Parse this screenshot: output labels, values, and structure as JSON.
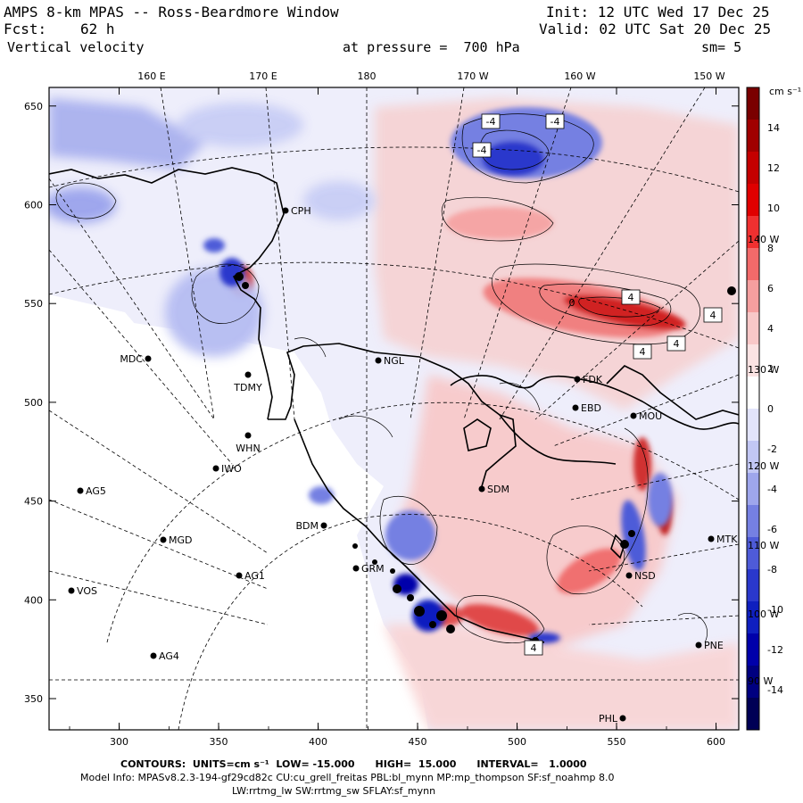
{
  "header": {
    "title": "AMPS 8-km MPAS -- Ross-Beardmore Window",
    "init": "Init: 12 UTC Wed 17 Dec 25",
    "fcst_label": "Fcst:",
    "fcst_value": "62 h",
    "valid": "Valid: 02 UTC Sat 20 Dec 25",
    "variable": "Vertical velocity",
    "pressure": "at pressure =  700 hPa",
    "smoothing": "sm= 5"
  },
  "axes": {
    "x_ticks": [
      "300",
      "350",
      "400",
      "450",
      "500",
      "550",
      "600"
    ],
    "y_ticks": [
      "350",
      "400",
      "450",
      "500",
      "550",
      "600",
      "650"
    ],
    "lon_labels": [
      "160 E",
      "170 E",
      "180",
      "170 W",
      "160 W",
      "150 W"
    ],
    "edge_lon_labels": [
      "140 W",
      "130 W",
      "120 W",
      "110 W",
      "100 W",
      "90 W"
    ]
  },
  "colorbar": {
    "units": "cm s⁻¹",
    "labels": [
      "14",
      "12",
      "10",
      "8",
      "6",
      "4",
      "2",
      "0",
      "-2",
      "-4",
      "-6",
      "-8",
      "-10",
      "-12",
      "-14"
    ],
    "colors": [
      "#7a0000",
      "#a00000",
      "#c40000",
      "#e00000",
      "#f03030",
      "#f26a6a",
      "#f59f9f",
      "#f8c8c8",
      "#fbe3e3",
      "#ffffff",
      "#e2e4fb",
      "#c2c7f4",
      "#9ea6ec",
      "#7580e2",
      "#4e5bd8",
      "#2a38cc",
      "#0f1fbf",
      "#0000aa",
      "#000080",
      "#000055"
    ]
  },
  "stations": [
    {
      "id": "CPH",
      "label": "CPH"
    },
    {
      "id": "MDC",
      "label": "MDC"
    },
    {
      "id": "TDMY",
      "label": "TDMY"
    },
    {
      "id": "NGL",
      "label": "NGL"
    },
    {
      "id": "WHN",
      "label": "WHN"
    },
    {
      "id": "IWO",
      "label": "IWO"
    },
    {
      "id": "AG5",
      "label": "AG5"
    },
    {
      "id": "MGD",
      "label": "MGD"
    },
    {
      "id": "AG1",
      "label": "AG1"
    },
    {
      "id": "VOS",
      "label": "VOS"
    },
    {
      "id": "AG4",
      "label": "AG4"
    },
    {
      "id": "BDM",
      "label": "BDM"
    },
    {
      "id": "GRM",
      "label": "GRM"
    },
    {
      "id": "SDM",
      "label": "SDM"
    },
    {
      "id": "FDK",
      "label": "FDK"
    },
    {
      "id": "EBD",
      "label": "EBD"
    },
    {
      "id": "MOU",
      "label": "MOU"
    },
    {
      "id": "MTK",
      "label": "MTK"
    },
    {
      "id": "NSD",
      "label": "NSD"
    },
    {
      "id": "PNE",
      "label": "PNE"
    },
    {
      "id": "PHL",
      "label": "PHL"
    }
  ],
  "contour_labels": [
    "-4",
    "-4",
    "-4",
    "4",
    "4",
    "4",
    "4",
    "0",
    "4"
  ],
  "footer": {
    "contours": "CONTOURS:  UNITS=cm s⁻¹  LOW= -15.000      HIGH=  15.000      INTERVAL=   1.0000",
    "model_info": "Model Info: MPASv8.2.3-194-gf29cd82c CU:cu_grell_freitas PBL:bl_mynn MP:mp_thompson SF:sf_noahmp 8.0",
    "physics": "LW:rrtmg_lw SW:rrtmg_sw SFLAY:sf_mynn"
  }
}
